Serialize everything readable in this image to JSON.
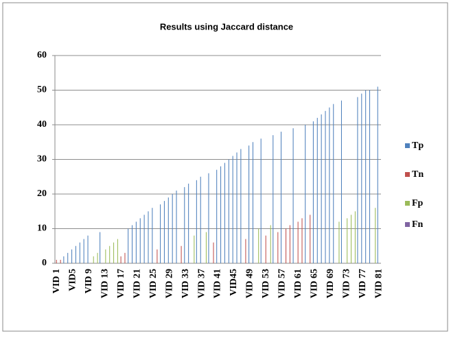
{
  "chart_data": {
    "type": "bar",
    "title": "Results using Jaccard distance",
    "categories": [
      "VID 1",
      null,
      null,
      null,
      "VID5",
      null,
      null,
      null,
      "VID 9",
      null,
      null,
      null,
      "VID 13",
      null,
      null,
      null,
      "VID 17",
      null,
      null,
      null,
      "VID 21",
      null,
      null,
      null,
      "VID 25",
      null,
      null,
      null,
      "VID 29",
      null,
      null,
      null,
      "VID 33",
      null,
      null,
      null,
      "VID 37",
      null,
      null,
      null,
      "VID 41",
      null,
      null,
      null,
      "VID45",
      null,
      null,
      null,
      "VID 49",
      null,
      null,
      null,
      "VID 53",
      null,
      null,
      null,
      "VID 57",
      null,
      null,
      null,
      "VID 61",
      null,
      null,
      null,
      "VID 65",
      null,
      null,
      null,
      "VID 69",
      null,
      null,
      null,
      "VID 73",
      null,
      null,
      null,
      "VID 77",
      null,
      null,
      null,
      "VID 81"
    ],
    "series": [
      {
        "name": "Tp",
        "color": "#4f81bd",
        "values": [
          0,
          0,
          2,
          3,
          4,
          5,
          6,
          7,
          8,
          0,
          0,
          9,
          0,
          0,
          0,
          0,
          0,
          0,
          10,
          11,
          12,
          13,
          14,
          15,
          16,
          0,
          17,
          18,
          19,
          20,
          21,
          0,
          22,
          23,
          0,
          24,
          25,
          0,
          26,
          0,
          27,
          28,
          29,
          30,
          31,
          32,
          33,
          0,
          34,
          35,
          0,
          36,
          0,
          0,
          37,
          0,
          38,
          0,
          0,
          39,
          0,
          0,
          40,
          0,
          41,
          42,
          43,
          44,
          45,
          46,
          0,
          47,
          0,
          0,
          0,
          48,
          49,
          50,
          50,
          0,
          51
        ]
      },
      {
        "name": "Tn",
        "color": "#c0504d",
        "values": [
          1,
          1,
          0,
          0,
          0,
          0,
          0,
          0,
          0,
          0,
          0,
          0,
          0,
          0,
          0,
          0,
          2,
          3,
          0,
          0,
          0,
          0,
          0,
          0,
          0,
          4,
          0,
          0,
          0,
          0,
          0,
          5,
          0,
          0,
          0,
          0,
          0,
          0,
          0,
          6,
          0,
          0,
          0,
          0,
          0,
          0,
          0,
          7,
          0,
          0,
          0,
          0,
          8,
          0,
          0,
          9,
          0,
          10,
          11,
          0,
          12,
          13,
          0,
          14,
          0,
          0,
          0,
          0,
          0,
          0,
          0,
          0,
          0,
          0,
          0,
          0,
          0,
          0,
          0,
          0,
          0
        ]
      },
      {
        "name": "Fp",
        "color": "#9bbb59",
        "values": [
          0,
          0,
          0,
          0,
          0,
          0,
          0,
          0,
          0,
          2,
          3,
          0,
          4,
          5,
          6,
          7,
          0,
          0,
          0,
          0,
          0,
          0,
          0,
          0,
          0,
          0,
          0,
          0,
          0,
          0,
          0,
          0,
          0,
          0,
          8,
          0,
          0,
          9,
          0,
          0,
          0,
          0,
          0,
          0,
          0,
          0,
          0,
          0,
          0,
          0,
          10,
          0,
          0,
          11,
          0,
          0,
          0,
          0,
          0,
          0,
          0,
          0,
          0,
          0,
          0,
          0,
          0,
          0,
          0,
          0,
          12,
          0,
          13,
          14,
          15,
          0,
          0,
          0,
          0,
          16,
          0
        ]
      },
      {
        "name": "Fn",
        "color": "#8064a2",
        "values": [
          0,
          0,
          0,
          0,
          0,
          0,
          0,
          0,
          0,
          0,
          0,
          0,
          0,
          0,
          0,
          0,
          0,
          0,
          0,
          0,
          0,
          0,
          0,
          0,
          0,
          0,
          0,
          0,
          0,
          0,
          0,
          0,
          0,
          0,
          0,
          0,
          0,
          0,
          0,
          0,
          0,
          0,
          0,
          0,
          0,
          0,
          0,
          0,
          0,
          0,
          0,
          0,
          0,
          0,
          0,
          0,
          0,
          0,
          0,
          0,
          0,
          0,
          0,
          0,
          0,
          0,
          0,
          0,
          0,
          0,
          0,
          0,
          0,
          0,
          0,
          0,
          0,
          0,
          0,
          0,
          0
        ]
      }
    ],
    "ylim": [
      0,
      60
    ],
    "yticks": [
      0,
      10,
      20,
      30,
      40,
      50,
      60
    ],
    "grid": true,
    "legend": "right"
  }
}
